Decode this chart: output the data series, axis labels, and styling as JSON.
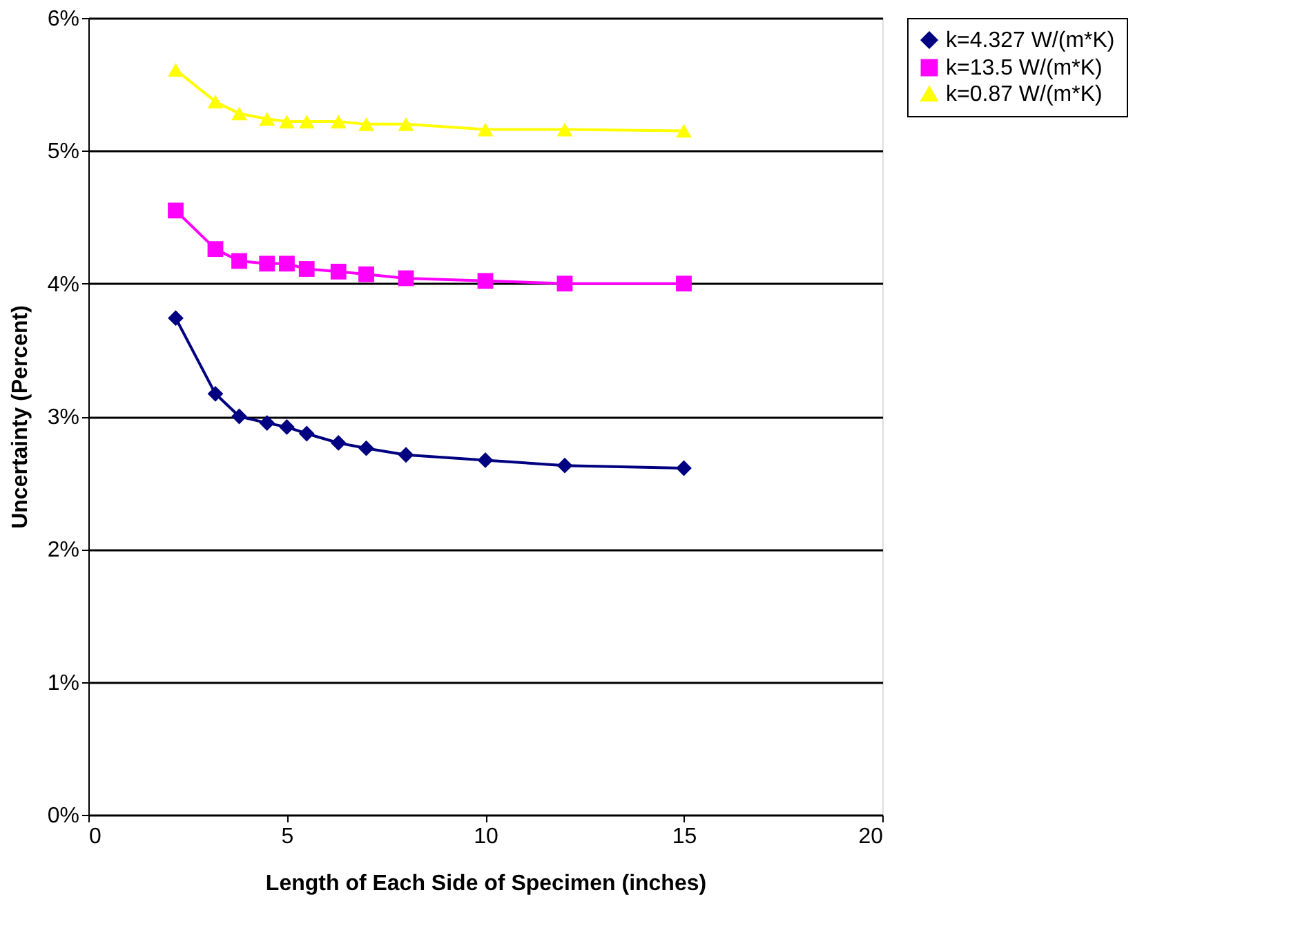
{
  "chart_data": {
    "type": "line",
    "xlabel": "Length of Each Side of Specimen (inches)",
    "ylabel": "Uncertainty (Percent)",
    "x": [
      2.2,
      3.2,
      3.8,
      4.5,
      5,
      5.5,
      6.3,
      7,
      8,
      10,
      12,
      15
    ],
    "series": [
      {
        "name": "k=4.327 W/(m*K)",
        "color": "#000080",
        "marker": "diamond",
        "values": [
          3.74,
          3.17,
          3.0,
          2.95,
          2.92,
          2.87,
          2.8,
          2.76,
          2.71,
          2.67,
          2.63,
          2.61
        ]
      },
      {
        "name": "k=13.5 W/(m*K)",
        "color": "#ff00ff",
        "marker": "square",
        "values": [
          4.55,
          4.26,
          4.17,
          4.15,
          4.15,
          4.11,
          4.09,
          4.07,
          4.04,
          4.02,
          4.0,
          4.0
        ]
      },
      {
        "name": "k=0.87 W/(m*K)",
        "color": "#ffff00",
        "marker": "triangle",
        "values": [
          5.61,
          5.37,
          5.28,
          5.24,
          5.22,
          5.22,
          5.22,
          5.2,
          5.2,
          5.16,
          5.16,
          5.15
        ]
      }
    ],
    "xlim": [
      0,
      20
    ],
    "xticks": [
      0,
      5,
      10,
      15,
      20
    ],
    "ylim": [
      0,
      6
    ],
    "yticks": [
      {
        "value": 0,
        "label": "0%"
      },
      {
        "value": 1,
        "label": "1%"
      },
      {
        "value": 2,
        "label": "2%"
      },
      {
        "value": 3,
        "label": "3%"
      },
      {
        "value": 4,
        "label": "4%"
      },
      {
        "value": 5,
        "label": "5%"
      },
      {
        "value": 6,
        "label": "6%"
      }
    ],
    "grid": "y",
    "legend": "right",
    "line_style": "solid"
  }
}
